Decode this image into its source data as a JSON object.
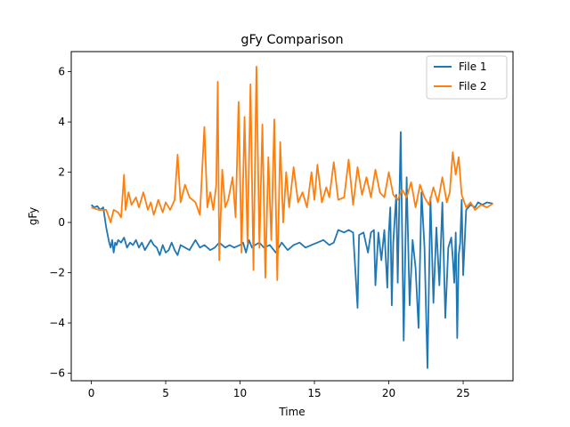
{
  "chart_data": {
    "type": "line",
    "title": "gFy Comparison",
    "xlabel": "Time",
    "ylabel": "gFy",
    "xlim": [
      -1.35,
      28.35
    ],
    "ylim": [
      -6.3,
      6.8
    ],
    "x_ticks": [
      0,
      5,
      10,
      15,
      20,
      25
    ],
    "y_ticks": [
      -6,
      -4,
      -2,
      0,
      2,
      4,
      6
    ],
    "grid": false,
    "legend_position": "top-right",
    "series": [
      {
        "name": "File 1",
        "color": "#1f77b4",
        "x": [
          0.0,
          0.2,
          0.4,
          0.6,
          0.8,
          1.0,
          1.1,
          1.2,
          1.3,
          1.4,
          1.5,
          1.6,
          1.7,
          1.8,
          2.0,
          2.2,
          2.4,
          2.6,
          2.8,
          3.0,
          3.2,
          3.4,
          3.6,
          3.8,
          4.0,
          4.2,
          4.4,
          4.6,
          4.8,
          5.0,
          5.2,
          5.4,
          5.6,
          5.8,
          6.0,
          6.3,
          6.6,
          7.0,
          7.3,
          7.6,
          8.0,
          8.3,
          8.6,
          9.0,
          9.3,
          9.6,
          10.0,
          10.2,
          10.4,
          10.6,
          10.8,
          11.0,
          11.3,
          11.6,
          12.0,
          12.4,
          12.8,
          13.2,
          13.6,
          14.0,
          14.4,
          14.8,
          15.2,
          15.6,
          16.0,
          16.3,
          16.6,
          17.0,
          17.3,
          17.6,
          17.9,
          18.0,
          18.3,
          18.6,
          18.8,
          19.0,
          19.1,
          19.3,
          19.5,
          19.7,
          19.9,
          20.0,
          20.1,
          20.2,
          20.3,
          20.5,
          20.6,
          20.8,
          21.0,
          21.2,
          21.4,
          21.6,
          21.8,
          22.0,
          22.2,
          22.4,
          22.6,
          22.8,
          23.0,
          23.2,
          23.4,
          23.6,
          23.8,
          24.0,
          24.2,
          24.3,
          24.4,
          24.5,
          24.6,
          24.7,
          24.8,
          24.9,
          25.0,
          25.2,
          25.5,
          25.8,
          26.0,
          26.3,
          26.6,
          27.0
        ],
        "y": [
          0.7,
          0.6,
          0.65,
          0.5,
          0.6,
          -0.2,
          -0.5,
          -0.8,
          -1.0,
          -0.7,
          -1.2,
          -0.8,
          -0.9,
          -0.7,
          -0.8,
          -0.6,
          -1.0,
          -0.8,
          -0.9,
          -0.7,
          -1.0,
          -0.8,
          -1.1,
          -0.9,
          -0.7,
          -0.9,
          -1.0,
          -1.3,
          -0.9,
          -1.2,
          -1.1,
          -0.8,
          -1.1,
          -1.3,
          -0.9,
          -1.0,
          -1.1,
          -0.7,
          -1.0,
          -0.9,
          -1.1,
          -1.0,
          -0.8,
          -1.0,
          -0.9,
          -1.0,
          -0.9,
          -0.8,
          -1.2,
          -0.7,
          -1.0,
          -0.9,
          -0.8,
          -1.0,
          -0.9,
          -1.2,
          -0.8,
          -1.1,
          -0.9,
          -0.8,
          -1.0,
          -0.9,
          -0.8,
          -0.7,
          -0.9,
          -0.8,
          -0.3,
          -0.4,
          -0.3,
          -0.4,
          -3.4,
          -0.5,
          -0.4,
          -1.2,
          -0.4,
          -0.3,
          -2.5,
          -0.4,
          -1.5,
          -0.3,
          -2.6,
          -0.4,
          0.6,
          -3.3,
          -0.8,
          1.1,
          -2.4,
          3.6,
          -4.7,
          1.8,
          -3.3,
          -0.7,
          -1.8,
          -4.2,
          1.2,
          -1.0,
          -5.8,
          1.0,
          -3.2,
          -0.2,
          -2.5,
          0.8,
          -3.8,
          -1.0,
          -0.6,
          -1.4,
          -2.4,
          -0.4,
          -4.6,
          -1.3,
          -0.8,
          0.9,
          -2.1,
          0.5,
          0.7,
          0.6,
          0.8,
          0.7,
          0.8,
          0.75
        ]
      },
      {
        "name": "File 2",
        "color": "#ff7f0e",
        "x": [
          0.0,
          0.5,
          1.0,
          1.3,
          1.5,
          1.8,
          2.0,
          2.2,
          2.3,
          2.5,
          2.7,
          3.0,
          3.2,
          3.5,
          3.8,
          4.0,
          4.2,
          4.5,
          4.8,
          5.0,
          5.3,
          5.6,
          5.8,
          6.0,
          6.3,
          6.6,
          7.0,
          7.3,
          7.6,
          7.8,
          8.0,
          8.2,
          8.4,
          8.5,
          8.6,
          8.8,
          9.0,
          9.2,
          9.5,
          9.7,
          9.9,
          10.1,
          10.3,
          10.5,
          10.7,
          10.9,
          11.1,
          11.3,
          11.5,
          11.7,
          11.9,
          12.1,
          12.3,
          12.5,
          12.7,
          12.9,
          13.1,
          13.3,
          13.6,
          13.9,
          14.2,
          14.5,
          14.8,
          15.0,
          15.2,
          15.5,
          15.8,
          16.0,
          16.3,
          16.6,
          17.0,
          17.3,
          17.6,
          17.9,
          18.2,
          18.5,
          18.8,
          19.1,
          19.4,
          19.7,
          20.0,
          20.3,
          20.6,
          20.9,
          21.2,
          21.5,
          21.8,
          22.1,
          22.4,
          22.7,
          23.0,
          23.3,
          23.6,
          23.9,
          24.1,
          24.3,
          24.5,
          24.7,
          24.9,
          25.2,
          25.5,
          25.8,
          26.2,
          26.6,
          27.0
        ],
        "y": [
          0.6,
          0.5,
          0.5,
          0.0,
          0.5,
          0.4,
          0.2,
          1.9,
          0.5,
          1.2,
          0.7,
          1.0,
          0.6,
          1.2,
          0.5,
          0.8,
          0.3,
          0.9,
          0.4,
          0.8,
          0.5,
          0.9,
          2.7,
          0.8,
          1.5,
          1.0,
          0.8,
          0.3,
          3.8,
          0.6,
          1.2,
          0.5,
          1.5,
          5.6,
          -1.5,
          2.1,
          0.6,
          0.9,
          1.8,
          0.2,
          4.8,
          -1.2,
          4.2,
          -0.8,
          5.5,
          -1.9,
          6.2,
          -1.0,
          3.9,
          -2.2,
          2.6,
          -0.7,
          4.1,
          -2.3,
          3.2,
          0.0,
          2.0,
          0.6,
          2.2,
          0.8,
          1.2,
          0.6,
          2.0,
          0.9,
          2.3,
          0.8,
          1.4,
          1.0,
          2.4,
          0.9,
          1.0,
          2.5,
          0.7,
          2.2,
          1.1,
          1.8,
          1.0,
          2.1,
          1.2,
          1.0,
          2.0,
          1.1,
          0.9,
          1.3,
          1.0,
          1.6,
          0.6,
          1.5,
          1.0,
          0.7,
          1.4,
          0.8,
          1.8,
          0.8,
          1.2,
          2.8,
          1.9,
          2.6,
          1.1,
          0.6,
          0.8,
          0.5,
          0.7,
          0.6,
          0.75
        ]
      }
    ]
  }
}
